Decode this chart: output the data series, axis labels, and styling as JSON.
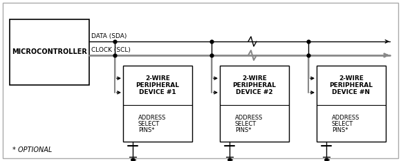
{
  "bg_color": "#ffffff",
  "box_color": "#ffffff",
  "line_color": "#000000",
  "gray_line_color": "#888888",
  "microcontroller_label": "MICROCONTROLLER",
  "data_label": "DATA (SDA)",
  "clock_label": "CLOCK (SCL)",
  "device1_lines": [
    "2-WIRE",
    "PERIPHERAL",
    "DEVICE #1"
  ],
  "device2_lines": [
    "2-WIRE",
    "PERIPHERAL",
    "DEVICE #2"
  ],
  "deviceN_lines": [
    "2-WIRE",
    "PERIPHERAL",
    "DEVICE #N"
  ],
  "addr_lines": [
    "ADDRESS",
    "SELECT",
    "PINS*"
  ],
  "optional_text": "* OPTIONAL",
  "font_size_mc": 7,
  "font_size_label": 6.5,
  "font_size_device": 6.5,
  "font_size_addr": 6,
  "font_size_optional": 7
}
